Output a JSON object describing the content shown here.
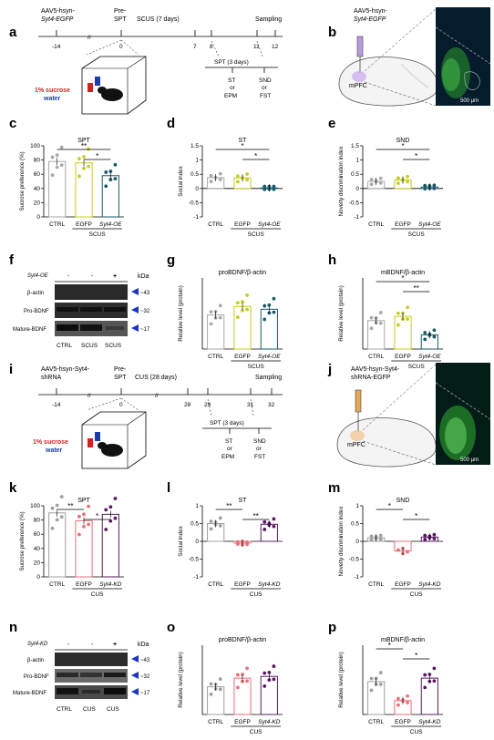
{
  "panel_labels": {
    "a": "a",
    "b": "b",
    "c": "c",
    "d": "d",
    "e": "e",
    "f": "f",
    "g": "g",
    "h": "h",
    "i": "i",
    "j": "j",
    "k": "k",
    "l": "l",
    "m": "m",
    "n": "n",
    "o": "o",
    "p": "p"
  },
  "timeline_top": {
    "virus_line1": "AAV5-hsyn-",
    "virus_line2": "Syt4-EGFP",
    "pre_line1": "Pre-",
    "pre_line2": "SPT",
    "scus": "SCUS (7 days)",
    "sampling": "Sampling",
    "ticks": [
      "-14",
      "0",
      "7",
      "8",
      "11",
      "12"
    ],
    "spt3": "SPT (3 days)",
    "st": "ST",
    "or1": "or",
    "epm": "EPM",
    "snd": "SND",
    "or2": "or",
    "fst": "FST",
    "sucrose": "1% sucrose",
    "water": "water"
  },
  "timeline_bottom": {
    "virus_line1": "AAV5-hsyn-Syt4-",
    "virus_line2": "shRNA",
    "pre_line1": "Pre-",
    "pre_line2": "SPT",
    "cus": "CUS (28 days)",
    "sampling": "Sampling",
    "ticks": [
      "-14",
      "0",
      "28",
      "29",
      "31",
      "32"
    ],
    "spt3": "SPT (3 days)",
    "st": "ST",
    "or1": "or",
    "epm": "EPM",
    "snd": "SND",
    "or2": "or",
    "fst": "FST",
    "sucrose": "1% sucrose",
    "water": "water"
  },
  "brain_top": {
    "virus_line1": "AAV5-hsyn-",
    "virus_line2": "Syt4-EGFP",
    "region": "mPFC",
    "scale": "500 μm"
  },
  "brain_bottom": {
    "virus_line1": "AAV5-hsyn-Syt4-",
    "virus_line2": "shRNA-EGFP",
    "region": "mPFC",
    "scale": "500 μm"
  },
  "colors": {
    "ctrl": "#a9a9a9",
    "egfp": "#c8cc1f",
    "syt4oe": "#1a5a6a",
    "cus_ctrl": "#a0a0a0",
    "cus_egfp": "#e8707a",
    "syt4kd": "#5a1a60"
  },
  "western_top": {
    "header_label": "Syt4-OE",
    "signs": [
      "-",
      "-",
      "+"
    ],
    "kda": "kDa",
    "rows": [
      {
        "name": "β-actin",
        "kda": "~43"
      },
      {
        "name": "Pro-BDNF",
        "kda": "~32"
      },
      {
        "name": "Mature-BDNF",
        "kda": "~17"
      }
    ],
    "lanes": [
      "CTRL",
      "SCUS",
      "SCUS"
    ]
  },
  "western_bottom": {
    "header_label": "Syt4-KD",
    "signs": [
      "-",
      "-",
      "+"
    ],
    "kda": "kDa",
    "rows": [
      {
        "name": "β-actin",
        "kda": "~43"
      },
      {
        "name": "Pro-BDNF",
        "kda": "~32"
      },
      {
        "name": "Mature-BDNF",
        "kda": "~17"
      }
    ],
    "lanes": [
      "CTRL",
      "CUS",
      "CUS"
    ]
  },
  "chart_data": [
    {
      "id": "c",
      "type": "bar",
      "title": "SPT",
      "ylabel": "Sucrose preference (%)",
      "categories": [
        "CTRL",
        "EGFP",
        "Syt4-OE"
      ],
      "group_label": "SCUS",
      "values": [
        78,
        76,
        58
      ],
      "ylim": [
        0,
        100
      ],
      "yticks": [
        0,
        20,
        40,
        60,
        80,
        100
      ],
      "sig": [
        {
          "text": "**",
          "between": [
            0,
            2
          ]
        },
        {
          "text": "*",
          "between": [
            1,
            2
          ]
        }
      ]
    },
    {
      "id": "d",
      "type": "bar",
      "title": "ST",
      "ylabel": "Social index",
      "categories": [
        "CTRL",
        "EGFP",
        "Syt4-OE"
      ],
      "group_label": "SCUS",
      "values": [
        0.38,
        0.37,
        0.02
      ],
      "ylim": [
        -1.0,
        1.5
      ],
      "yticks": [
        -1.0,
        -0.5,
        0.0,
        0.5,
        1.0,
        1.5
      ],
      "sig": [
        {
          "text": "*",
          "between": [
            0,
            2
          ]
        },
        {
          "text": "*",
          "between": [
            1,
            2
          ]
        }
      ]
    },
    {
      "id": "e",
      "type": "bar",
      "title": "SND",
      "ylabel": "Novelty discrimination index",
      "categories": [
        "CTRL",
        "EGFP",
        "Syt4-OE"
      ],
      "group_label": "SCUS",
      "values": [
        0.25,
        0.3,
        0.05
      ],
      "ylim": [
        -1.0,
        1.5
      ],
      "yticks": [
        -1.0,
        -0.5,
        0.0,
        0.5,
        1.0,
        1.5
      ],
      "sig": [
        {
          "text": "*",
          "between": [
            0,
            2
          ]
        },
        {
          "text": "*",
          "between": [
            1,
            2
          ]
        }
      ]
    },
    {
      "id": "g",
      "type": "bar",
      "title": "proBDNF/β-actin",
      "ylabel": "Relative level (protein)",
      "categories": [
        "CTRL",
        "EGFP",
        "Syt4-OE"
      ],
      "group_label": "SCUS",
      "values": [
        1.2,
        1.5,
        1.4
      ],
      "ylim": [
        0,
        2.5
      ],
      "yticks": [],
      "sig": []
    },
    {
      "id": "h",
      "type": "bar",
      "title": "mBDNF/β-actin",
      "ylabel": "Relative level (protein)",
      "categories": [
        "CTRL",
        "EGFP",
        "Syt4-OE"
      ],
      "group_label": "SCUS",
      "values": [
        1.0,
        1.15,
        0.5
      ],
      "ylim": [
        0,
        2.5
      ],
      "yticks": [],
      "sig": [
        {
          "text": "*",
          "between": [
            0,
            2
          ]
        },
        {
          "text": "**",
          "between": [
            1,
            2
          ]
        }
      ]
    },
    {
      "id": "k",
      "type": "bar",
      "title": "SPT",
      "ylabel": "Sucrose preference (%)",
      "categories": [
        "CTRL",
        "EGFP",
        "Syt4-KD"
      ],
      "group_label": "CUS",
      "values": [
        90,
        79,
        88
      ],
      "ylim": [
        0,
        100
      ],
      "yticks": [
        0,
        20,
        40,
        60,
        80,
        100
      ],
      "sig": [
        {
          "text": "**",
          "between": [
            0,
            1
          ]
        },
        {
          "text": "*",
          "between": [
            1,
            2
          ]
        }
      ]
    },
    {
      "id": "l",
      "type": "bar",
      "title": "ST",
      "ylabel": "Social index",
      "categories": [
        "CTRL",
        "EGFP",
        "Syt4-KD"
      ],
      "group_label": "CUS",
      "values": [
        0.5,
        -0.05,
        0.48
      ],
      "ylim": [
        -1.0,
        1.0
      ],
      "yticks": [
        -1.0,
        -0.5,
        0.0,
        0.5,
        1.0
      ],
      "sig": [
        {
          "text": "**",
          "between": [
            0,
            1
          ]
        },
        {
          "text": "**",
          "between": [
            1,
            2
          ]
        }
      ]
    },
    {
      "id": "m",
      "type": "bar",
      "title": "SND",
      "ylabel": "Novelty discrimination index",
      "categories": [
        "CTRL",
        "EGFP",
        "Syt4-KD"
      ],
      "group_label": "CUS",
      "values": [
        0.1,
        -0.27,
        0.12
      ],
      "ylim": [
        -1.0,
        1.0
      ],
      "yticks": [
        -1.0,
        -0.5,
        0.0,
        0.5,
        1.0
      ],
      "sig": [
        {
          "text": "*",
          "between": [
            0,
            1
          ]
        },
        {
          "text": "*",
          "between": [
            1,
            2
          ]
        }
      ]
    },
    {
      "id": "o",
      "type": "bar",
      "title": "proBDNF/β-actin",
      "ylabel": "Relative level (protein)",
      "categories": [
        "CTRL",
        "EGFP",
        "Syt4-KD"
      ],
      "group_label": "CUS",
      "values": [
        0.8,
        1.05,
        1.1
      ],
      "ylim": [
        0,
        2.0
      ],
      "yticks": [],
      "sig": []
    },
    {
      "id": "p",
      "type": "bar",
      "title": "mBDNF/β-actin",
      "ylabel": "Relative level (protein)",
      "categories": [
        "CTRL",
        "EGFP",
        "Syt4-KD"
      ],
      "group_label": "CUS",
      "values": [
        0.95,
        0.4,
        1.05
      ],
      "ylim": [
        0,
        2.0
      ],
      "yticks": [],
      "sig": [
        {
          "text": "*",
          "between": [
            0,
            1
          ]
        },
        {
          "text": "*",
          "between": [
            1,
            2
          ]
        }
      ]
    }
  ]
}
